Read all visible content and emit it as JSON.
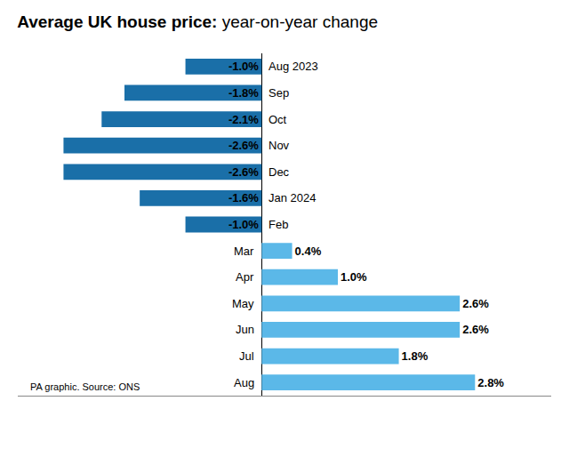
{
  "chart_data": {
    "type": "bar",
    "orientation": "horizontal",
    "title": "Average UK house price: year-on-year change",
    "categories": [
      "Aug 2023",
      "Sep",
      "Oct",
      "Nov",
      "Dec",
      "Jan 2024",
      "Feb",
      "Mar",
      "Apr",
      "May",
      "Jun",
      "Jul",
      "Aug"
    ],
    "values": [
      -1.0,
      -1.8,
      -2.1,
      -2.6,
      -2.6,
      -1.6,
      -1.0,
      0.4,
      1.0,
      2.6,
      2.6,
      1.8,
      2.8
    ],
    "value_labels": [
      "-1.0%",
      "-1.8%",
      "-2.1%",
      "-2.6%",
      "-2.6%",
      "-1.6%",
      "-1.0%",
      "0.4%",
      "1.0%",
      "2.6%",
      "2.6%",
      "1.8%",
      "2.8%"
    ],
    "colors": [
      "#1a6fa8",
      "#1a6fa8",
      "#1a6fa8",
      "#1a6fa8",
      "#1a6fa8",
      "#1a6fa8",
      "#1a6fa8",
      "#5bb8e8",
      "#5bb8e8",
      "#5bb8e8",
      "#5bb8e8",
      "#5bb8e8",
      "#5bb8e8"
    ],
    "xlim": [
      -3.2,
      3.8
    ],
    "data_labels": true,
    "tick_labels": false,
    "grid": false,
    "annotations": [
      "PA graphic. Source: ONS"
    ]
  }
}
